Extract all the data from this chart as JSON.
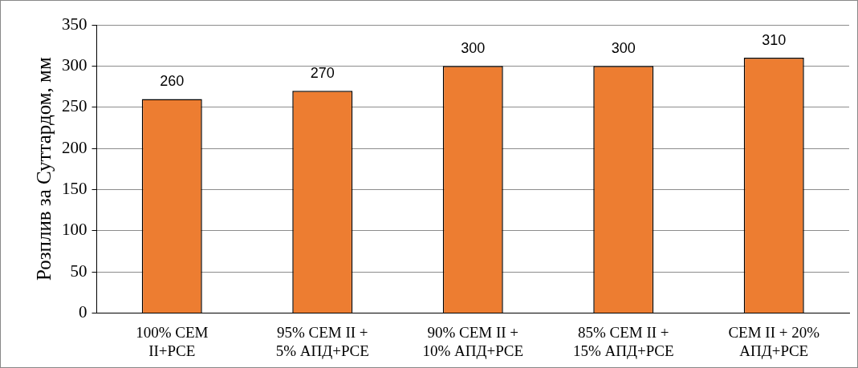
{
  "chart_data": {
    "type": "bar",
    "ylabel": "Розплив за Суттардом, мм",
    "categories": [
      "100% CEM II+PCE",
      "95% CEM II + 5% АПД+PCE",
      "90% CEM II + 10% АПД+PCE",
      "85% CEM II + 15% АПД+PCE",
      "CEM II + 20% АПД+PCE"
    ],
    "values": [
      260,
      270,
      300,
      300,
      310
    ],
    "color": "#ed7d31",
    "ylim": [
      0,
      350
    ],
    "yticks": [
      0,
      50,
      100,
      150,
      200,
      250,
      300,
      350
    ],
    "grid": "y",
    "data_labels": true,
    "legend": false
  }
}
